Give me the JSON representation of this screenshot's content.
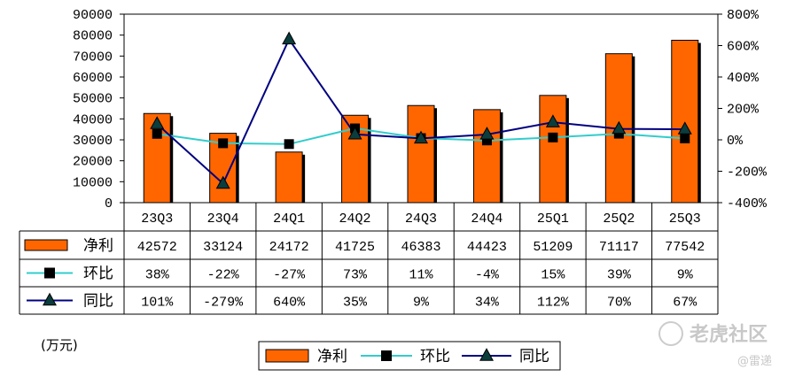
{
  "chart_data": {
    "type": "bar",
    "categories": [
      "23Q3",
      "23Q4",
      "24Q1",
      "24Q2",
      "24Q3",
      "24Q4",
      "25Q1",
      "25Q2",
      "25Q3"
    ],
    "series": [
      {
        "name": "净利",
        "kind": "bar",
        "axis": "left",
        "color": "#ff6600",
        "values": [
          42572,
          33124,
          24172,
          41725,
          46383,
          44423,
          51209,
          71117,
          77542
        ]
      },
      {
        "name": "环比",
        "kind": "line",
        "axis": "right",
        "color": "#33cccc",
        "marker": "square",
        "values": [
          38,
          -22,
          -27,
          73,
          11,
          -4,
          15,
          39,
          9
        ]
      },
      {
        "name": "同比",
        "kind": "line",
        "axis": "right",
        "color": "#000080",
        "marker": "triangle",
        "values": [
          101,
          -279,
          640,
          35,
          9,
          34,
          112,
          70,
          67
        ]
      }
    ],
    "table_rows": [
      [
        "42572",
        "33124",
        "24172",
        "41725",
        "46383",
        "44423",
        "51209",
        "71117",
        "77542"
      ],
      [
        "38%",
        "-22%",
        "-27%",
        "73%",
        "11%",
        "-4%",
        "15%",
        "39%",
        "9%"
      ],
      [
        "101%",
        "-279%",
        "640%",
        "35%",
        "9%",
        "34%",
        "112%",
        "70%",
        "67%"
      ]
    ],
    "y_left": {
      "ylim": [
        0,
        90000
      ],
      "ticks": [
        "90000",
        "80000",
        "70000",
        "60000",
        "50000",
        "40000",
        "30000",
        "20000",
        "10000",
        "0"
      ]
    },
    "y_right": {
      "ylim": [
        -400,
        800
      ],
      "ticks": [
        "800%",
        "600%",
        "400%",
        "200%",
        "0%",
        "-200%",
        "-400%"
      ]
    },
    "unit_label": "(万元)",
    "legend": {
      "placement": "bottom",
      "items": [
        "净利",
        "环比",
        "同比"
      ]
    },
    "grid": false
  },
  "watermark": {
    "main": "老虎社区",
    "sub": "@雷递"
  }
}
